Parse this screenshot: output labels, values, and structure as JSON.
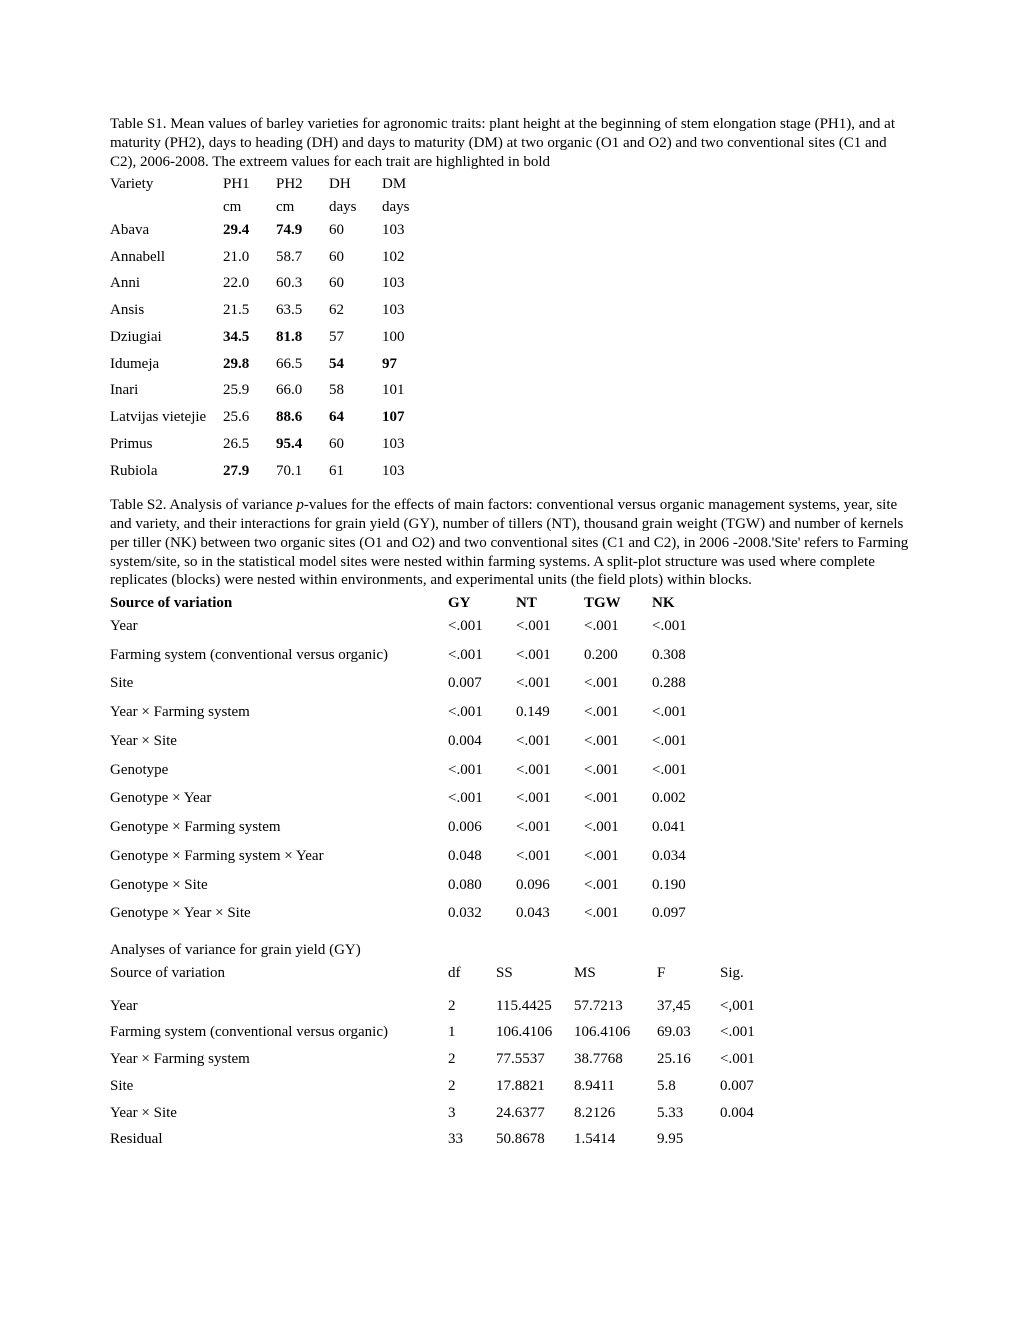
{
  "table1": {
    "caption_parts": [
      "Table S1. Mean values of barley varieties for agronomic traits: plant height at the beginning of stem elongation stage (PH1), and at maturity (PH2), days to heading (DH) and days to maturity (DM) at two organic (O1 and O2) and two conventional sites (C1 and C2), 2006-2008. The extreem values for each trait are highlighted in bold"
    ],
    "headers": [
      "Variety",
      "PH1",
      "PH2",
      "DH",
      "DM"
    ],
    "units": [
      "",
      "cm",
      "cm",
      "days",
      "days"
    ],
    "rows": [
      {
        "cells": [
          "Abava",
          "29.4",
          "74.9",
          "60",
          "103"
        ],
        "bold": [
          false,
          true,
          true,
          false,
          false
        ]
      },
      {
        "cells": [
          "Annabell",
          "21.0",
          "58.7",
          "60",
          "102"
        ],
        "bold": [
          false,
          false,
          false,
          false,
          false
        ]
      },
      {
        "cells": [
          "Anni",
          "22.0",
          "60.3",
          "60",
          "103"
        ],
        "bold": [
          false,
          false,
          false,
          false,
          false
        ]
      },
      {
        "cells": [
          "Ansis",
          "21.5",
          "63.5",
          "62",
          "103"
        ],
        "bold": [
          false,
          false,
          false,
          false,
          false
        ]
      },
      {
        "cells": [
          "Dziugiai",
          "34.5",
          "81.8",
          "57",
          "100"
        ],
        "bold": [
          false,
          true,
          true,
          false,
          false
        ]
      },
      {
        "cells": [
          "Idumeja",
          "29.8",
          "66.5",
          "54",
          "97"
        ],
        "bold": [
          false,
          true,
          false,
          true,
          true
        ]
      },
      {
        "cells": [
          "Inari",
          "25.9",
          "66.0",
          "58",
          "101"
        ],
        "bold": [
          false,
          false,
          false,
          false,
          false
        ]
      },
      {
        "cells": [
          "Latvijas vietejie",
          "25.6",
          "88.6",
          "64",
          "107"
        ],
        "bold": [
          false,
          false,
          true,
          true,
          true
        ]
      },
      {
        "cells": [
          "Primus",
          "26.5",
          "95.4",
          "60",
          "103"
        ],
        "bold": [
          false,
          false,
          true,
          false,
          false
        ]
      },
      {
        "cells": [
          "Rubiola",
          "27.9",
          "70.1",
          "61",
          "103"
        ],
        "bold": [
          false,
          true,
          false,
          false,
          false
        ]
      }
    ]
  },
  "table2": {
    "caption_prefix": "Table S2. Analysis of variance ",
    "caption_pword": "p-",
    "caption_suffix": "values for the effects of main factors: conventional versus organic management systems, year, site and variety, and their interactions for grain yield (GY), number of tillers (NT), thousand grain weight (TGW) and number of kernels per tiller (NK) between two organic sites (O1 and O2) and two conventional sites (C1 and C2), in 2006 -2008.'Site' refers to Farming system/site, so in the statistical model sites were nested within farming systems. A split-plot structure was used where complete replicates (blocks) were nested within environments, and experimental units (the field plots) within blocks.",
    "headers": [
      "Source of variation",
      "GY",
      "NT",
      "TGW",
      "NK"
    ],
    "rows": [
      [
        "Year",
        "<.001",
        "<.001",
        "<.001",
        "<.001"
      ],
      [
        "Farming system (conventional versus organic)",
        "<.001",
        "<.001",
        "0.200",
        "0.308"
      ],
      [
        "Site",
        "0.007",
        "<.001",
        "<.001",
        "0.288"
      ],
      [
        "Year × Farming system",
        "<.001",
        "0.149",
        "<.001",
        "<.001"
      ],
      [
        "Year × Site",
        "0.004",
        "<.001",
        "<.001",
        "<.001"
      ],
      [
        "Genotype",
        "<.001",
        "<.001",
        "<.001",
        "<.001"
      ],
      [
        "Genotype × Year",
        "<.001",
        "<.001",
        "<.001",
        "0.002"
      ],
      [
        "Genotype × Farming system",
        "0.006",
        "<.001",
        "<.001",
        "0.041"
      ],
      [
        "Genotype × Farming system × Year",
        "0.048",
        "<.001",
        "<.001",
        "0.034"
      ],
      [
        "Genotype × Site",
        "0.080",
        "0.096",
        "<.001",
        "0.190"
      ],
      [
        "Genotype × Year × Site",
        "0.032",
        "0.043",
        "<.001",
        "0.097"
      ]
    ]
  },
  "table3": {
    "title": "Analyses of variance for grain yield (GY)",
    "headers": [
      "Source of variation",
      "df",
      "SS",
      "MS",
      "F",
      "Sig."
    ],
    "rows": [
      [
        "Year",
        "2",
        "115.4425",
        "57.7213",
        "37,45",
        "<,001"
      ],
      [
        "Farming system (conventional versus organic)",
        "1",
        "106.4106",
        "106.4106",
        "69.03",
        "<.001"
      ],
      [
        "Year × Farming system",
        "2",
        "77.5537",
        "38.7768",
        "25.16",
        "<.001"
      ],
      [
        "Site",
        "2",
        "17.8821",
        "8.9411",
        "5.8",
        "0.007"
      ],
      [
        "Year × Site",
        "3",
        "24.6377",
        "8.2126",
        "5.33",
        "0.004"
      ],
      [
        "Residual",
        "33",
        "50.8678",
        "1.5414",
        "9.95",
        ""
      ]
    ]
  }
}
